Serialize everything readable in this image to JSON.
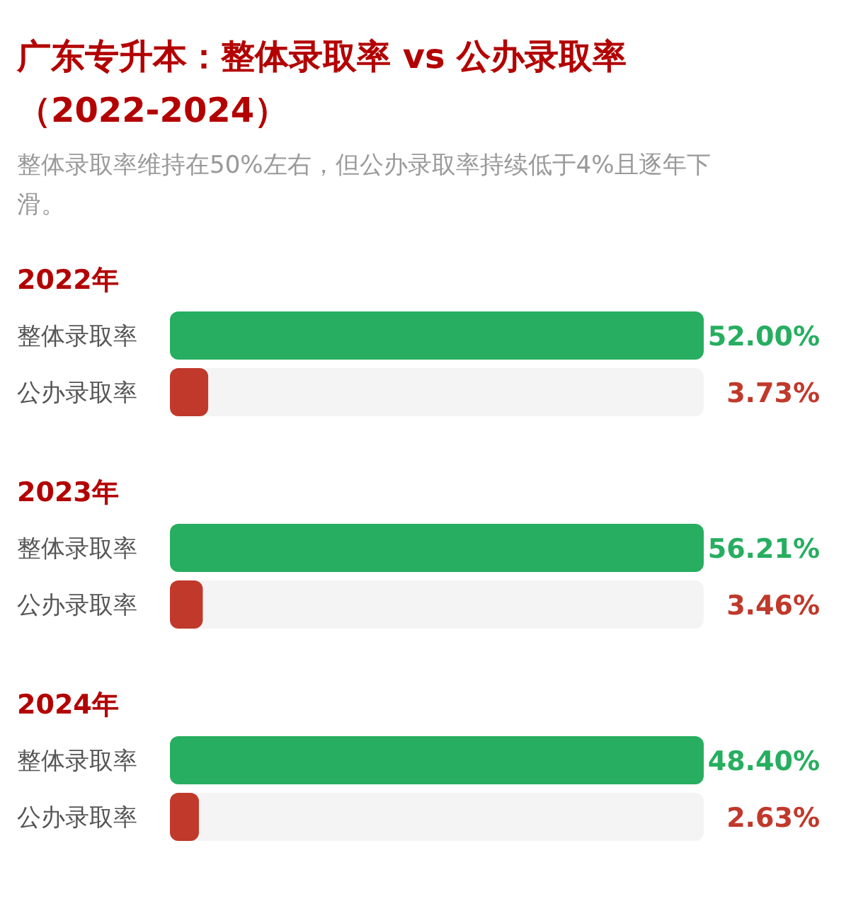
{
  "chart_data": [
    {
      "type": "other",
      "title": "广东专升本：整体录取率 vs 公办录取率（2022-2024）",
      "subtitle": "整体录取率维持在50%左右，但公办录取率持续低于4%且逐年下滑。"
    },
    {
      "type": "bar",
      "orientation": "horizontal",
      "title": "2022年",
      "categories": [
        "整体录取率",
        "公办录取率"
      ],
      "values": [
        52.0,
        3.73
      ],
      "colors": [
        "#27ae60",
        "#c0392b"
      ],
      "value_labels": [
        "52.00%",
        "3.73%"
      ]
    },
    {
      "type": "bar",
      "orientation": "horizontal",
      "title": "2023年",
      "categories": [
        "整体录取率",
        "公办录取率"
      ],
      "values": [
        56.21,
        3.46
      ],
      "colors": [
        "#27ae60",
        "#c0392b"
      ],
      "value_labels": [
        "56.21%",
        "3.46%"
      ]
    },
    {
      "type": "bar",
      "orientation": "horizontal",
      "title": "2024年",
      "categories": [
        "整体录取率",
        "公办录取率"
      ],
      "values": [
        48.4,
        2.63
      ],
      "colors": [
        "#27ae60",
        "#c0392b"
      ],
      "value_labels": [
        "48.40%",
        "2.63%"
      ]
    }
  ]
}
